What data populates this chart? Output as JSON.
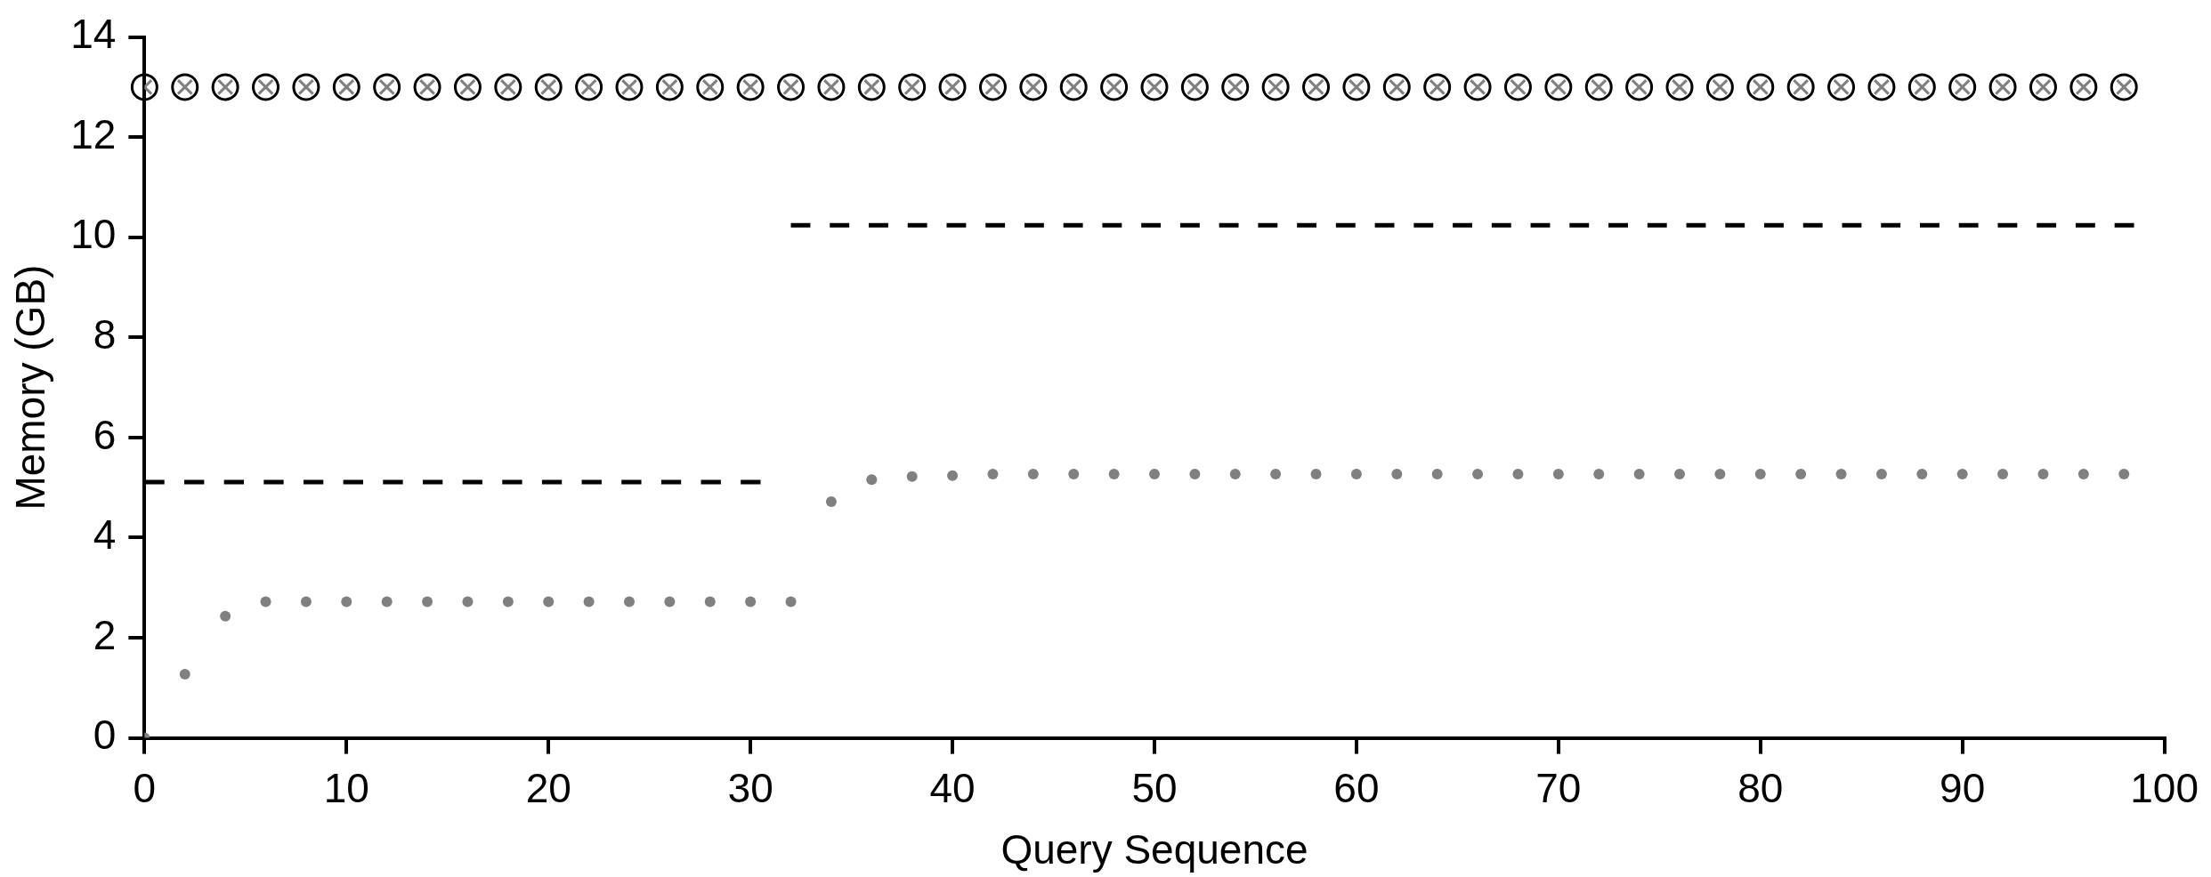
{
  "chart_data": {
    "type": "scatter",
    "xlabel": "Query Sequence",
    "ylabel": "Memory (GB)",
    "xlim": [
      0,
      100
    ],
    "xticks": [
      0,
      10,
      20,
      30,
      40,
      50,
      60,
      70,
      80,
      90,
      100
    ],
    "ylim": [
      0,
      14
    ],
    "yticks": [
      0,
      2,
      4,
      6,
      8,
      10,
      12,
      14
    ],
    "grid": false,
    "legend": false,
    "series": [
      {
        "marker": "cross",
        "color": "#808080",
        "x": [
          0,
          2,
          4,
          6,
          8,
          10,
          12,
          14,
          16,
          18,
          20,
          22,
          24,
          26,
          28,
          30,
          32,
          34,
          36,
          38,
          40,
          42,
          44,
          46,
          48,
          50,
          52,
          54,
          56,
          58,
          60,
          62,
          64,
          66,
          68,
          70,
          72,
          74,
          76,
          78,
          80,
          82,
          84,
          86,
          88,
          90,
          92,
          94,
          96,
          98
        ],
        "values": [
          13,
          13,
          13,
          13,
          13,
          13,
          13,
          13,
          13,
          13,
          13,
          13,
          13,
          13,
          13,
          13,
          13,
          13,
          13,
          13,
          13,
          13,
          13,
          13,
          13,
          13,
          13,
          13,
          13,
          13,
          13,
          13,
          13,
          13,
          13,
          13,
          13,
          13,
          13,
          13,
          13,
          13,
          13,
          13,
          13,
          13,
          13,
          13,
          13,
          13
        ]
      },
      {
        "marker": "circle",
        "color": "#808080",
        "x": [
          0,
          2,
          4,
          6,
          8,
          10,
          12,
          14,
          16,
          18,
          20,
          22,
          24,
          26,
          28,
          30,
          32,
          34,
          36,
          38,
          40,
          42,
          44,
          46,
          48,
          50,
          52,
          54,
          56,
          58,
          60,
          62,
          64,
          66,
          68,
          70,
          72,
          74,
          76,
          78,
          80,
          82,
          84,
          86,
          88,
          90,
          92,
          94,
          96,
          98
        ],
        "values": [
          0,
          1.27,
          2.43,
          2.72,
          2.72,
          2.72,
          2.72,
          2.72,
          2.72,
          2.72,
          2.72,
          2.72,
          2.72,
          2.72,
          2.72,
          2.72,
          2.72,
          4.72,
          5.16,
          5.22,
          5.24,
          5.27,
          5.27,
          5.27,
          5.27,
          5.27,
          5.27,
          5.27,
          5.27,
          5.27,
          5.27,
          5.27,
          5.27,
          5.27,
          5.27,
          5.27,
          5.27,
          5.27,
          5.27,
          5.27,
          5.27,
          5.27,
          5.27,
          5.27,
          5.27,
          5.27,
          5.27,
          5.27,
          5.27,
          5.27
        ]
      },
      {
        "type": "line",
        "line_style": "dashed",
        "marker": "none",
        "color": "#000000",
        "x": [
          0,
          30.5
        ],
        "values": [
          5.11,
          5.11
        ]
      },
      {
        "type": "line",
        "line_style": "dashed",
        "marker": "none",
        "color": "#000000",
        "x": [
          32,
          98.5
        ],
        "values": [
          10.24,
          10.24
        ]
      }
    ]
  }
}
